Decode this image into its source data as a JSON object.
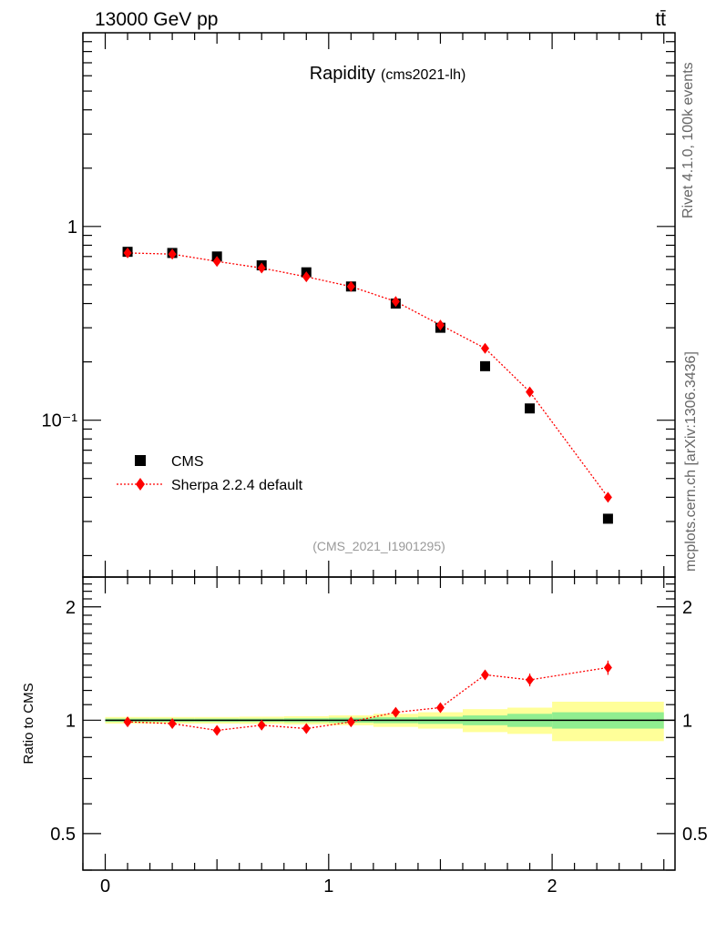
{
  "header": {
    "energy_label": "13000 GeV pp",
    "process_label": "tt̄"
  },
  "side_labels": {
    "rivet": "Rivet 4.1.0,  100k events",
    "mcplots": "mcplots.cern.ch [arXiv:1306.3436]"
  },
  "colors": {
    "data": "#000000",
    "mc": "#ff0000",
    "band_inner": "#90ee90",
    "band_outer": "#ffff99",
    "watermark": "#999999"
  },
  "chart_data": [
    {
      "panel": "main",
      "type": "scatter",
      "title": "Rapidity",
      "subtitle": "(cms2021-lh)",
      "analysis_label": "(CMS_2021_I1901295)",
      "yscale": "log",
      "xlim": [
        -0.1,
        2.55
      ],
      "ylim": [
        0.0155,
        10
      ],
      "ytick_labels": [
        {
          "value": 1,
          "label": "1"
        },
        {
          "value": 0.1,
          "label": "10⁻¹"
        }
      ],
      "legend_position": "lower-left",
      "series": [
        {
          "name": "CMS",
          "marker": "square",
          "x": [
            0.1,
            0.3,
            0.5,
            0.7,
            0.9,
            1.1,
            1.3,
            1.5,
            1.7,
            1.9,
            2.25
          ],
          "y": [
            0.74,
            0.73,
            0.7,
            0.63,
            0.58,
            0.49,
            0.4,
            0.3,
            0.19,
            0.115,
            0.031
          ]
        },
        {
          "name": "Sherpa 2.2.4 default",
          "marker": "diamond",
          "line": "dotted",
          "x": [
            0.1,
            0.3,
            0.5,
            0.7,
            0.9,
            1.1,
            1.3,
            1.5,
            1.7,
            1.9,
            2.25
          ],
          "y": [
            0.73,
            0.72,
            0.66,
            0.61,
            0.55,
            0.49,
            0.41,
            0.31,
            0.235,
            0.14,
            0.04
          ]
        }
      ]
    },
    {
      "panel": "ratio",
      "type": "line",
      "ylabel": "Ratio to CMS",
      "yscale": "log",
      "xlim": [
        -0.1,
        2.55
      ],
      "ylim": [
        0.4,
        2.4
      ],
      "ytick_labels": [
        {
          "value": 2,
          "label": "2"
        },
        {
          "value": 1,
          "label": "1"
        },
        {
          "value": 0.5,
          "label": "0.5"
        }
      ],
      "xtick_labels": [
        {
          "value": 0,
          "label": "0"
        },
        {
          "value": 1,
          "label": "1"
        },
        {
          "value": 2,
          "label": "2"
        }
      ],
      "ratio": {
        "x": [
          0.1,
          0.3,
          0.5,
          0.7,
          0.9,
          1.1,
          1.3,
          1.5,
          1.7,
          1.9,
          2.25
        ],
        "y": [
          0.99,
          0.98,
          0.94,
          0.97,
          0.95,
          0.99,
          1.05,
          1.08,
          1.32,
          1.28,
          1.38
        ],
        "err": [
          0.01,
          0.01,
          0.01,
          0.01,
          0.01,
          0.01,
          0.015,
          0.02,
          0.04,
          0.05,
          0.06
        ]
      },
      "bands": {
        "x_edges": [
          0,
          0.2,
          0.4,
          0.6,
          0.8,
          1.0,
          1.2,
          1.4,
          1.6,
          1.8,
          2.0,
          2.5
        ],
        "inner_half": [
          0.01,
          0.01,
          0.01,
          0.01,
          0.012,
          0.015,
          0.018,
          0.022,
          0.03,
          0.04,
          0.05
        ],
        "outer_half": [
          0.02,
          0.02,
          0.02,
          0.022,
          0.025,
          0.03,
          0.04,
          0.05,
          0.07,
          0.08,
          0.12
        ]
      }
    }
  ]
}
